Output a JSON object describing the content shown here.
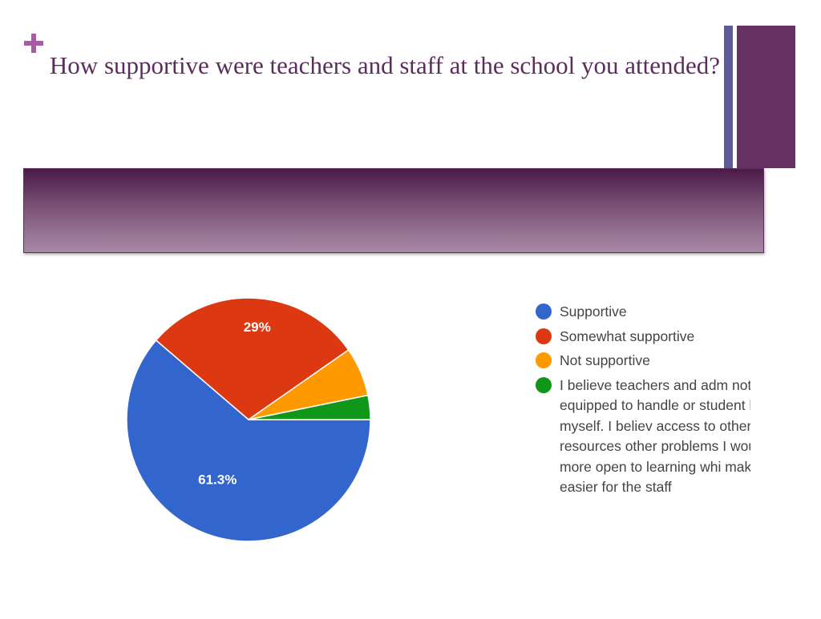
{
  "slide": {
    "title": "How supportive were teachers and staff at the school you attended?"
  },
  "colors": {
    "accent_plus": "#a85aa5",
    "title_text": "#5a2e5a",
    "deco_thin": "#5b5b9a",
    "deco_block": "#663163",
    "banner_top": "#4a1a47",
    "banner_bottom": "#a889a4"
  },
  "chart_data": {
    "type": "pie",
    "categories": [
      "Supportive",
      "Somewhat supportive",
      "Not supportive",
      "I believe teachers and adm not equipped to handle or student like myself. I believ access to other resources other problems I would hav more open to learning whi make it easier for the staff"
    ],
    "values": [
      61.3,
      29,
      6.5,
      3.2
    ],
    "colors": [
      "#3366cc",
      "#dc3912",
      "#ff9900",
      "#109618"
    ],
    "data_labels": [
      "61.3%",
      "29%",
      "",
      ""
    ],
    "legend_position": "right",
    "title": ""
  }
}
